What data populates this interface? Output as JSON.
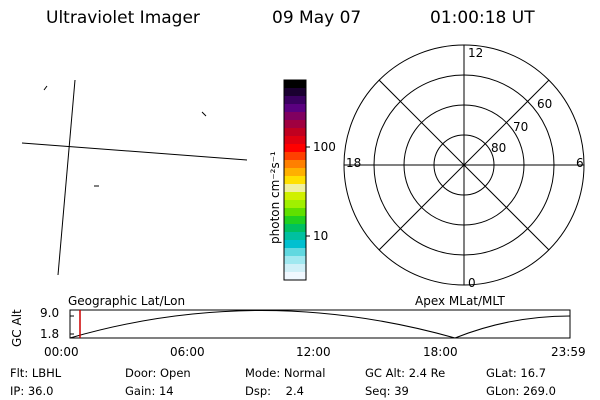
{
  "header": {
    "instrument": "Ultraviolet Imager",
    "date": "09 May 07",
    "time": "01:00:18 UT"
  },
  "colorbar": {
    "unit_label": "photon cm⁻²s⁻¹",
    "ticks": [
      "100",
      "10"
    ],
    "colors": [
      "#000000",
      "#1a0030",
      "#3a0060",
      "#5a0080",
      "#800060",
      "#a00040",
      "#c00020",
      "#e00010",
      "#ff0000",
      "#ff4000",
      "#ff8000",
      "#ffb000",
      "#ffe000",
      "#f0f0a0",
      "#d0f000",
      "#a0f000",
      "#60e000",
      "#20d020",
      "#00c060",
      "#00c0a0",
      "#00c0d0",
      "#60d8e0",
      "#a0e8f0",
      "#d0f0f8",
      "#f0f8ff"
    ]
  },
  "polar_plot": {
    "mlt_labels": {
      "top": "12",
      "bottom": "0",
      "left": "18",
      "right": "6"
    },
    "lat_labels": [
      "60",
      "70",
      "80"
    ]
  },
  "timeline": {
    "y_label": "GC Alt",
    "y_ticks": [
      "9.0",
      "1.8"
    ],
    "left_title": "Geographic Lat/Lon",
    "right_title": "Apex MLat/MLT",
    "x_ticks": [
      "00:00",
      "06:00",
      "12:00",
      "18:00",
      "23:59"
    ],
    "cursor_color": "#cc0000"
  },
  "info": {
    "row1": [
      {
        "label": "Flt:",
        "value": "LBHL"
      },
      {
        "label": "Door:",
        "value": "Open"
      },
      {
        "label": "Mode:",
        "value": "Normal"
      },
      {
        "label": "GC Alt:",
        "value": "2.4 Re"
      },
      {
        "label": "GLat:",
        "value": "16.7"
      }
    ],
    "row2": [
      {
        "label": "IP:",
        "value": "36.0"
      },
      {
        "label": "Gain:",
        "value": "14"
      },
      {
        "label": "Dsp:",
        "value": "2.4"
      },
      {
        "label": "Seq:",
        "value": "39"
      },
      {
        "label": "GLon:",
        "value": "269.0"
      }
    ]
  }
}
